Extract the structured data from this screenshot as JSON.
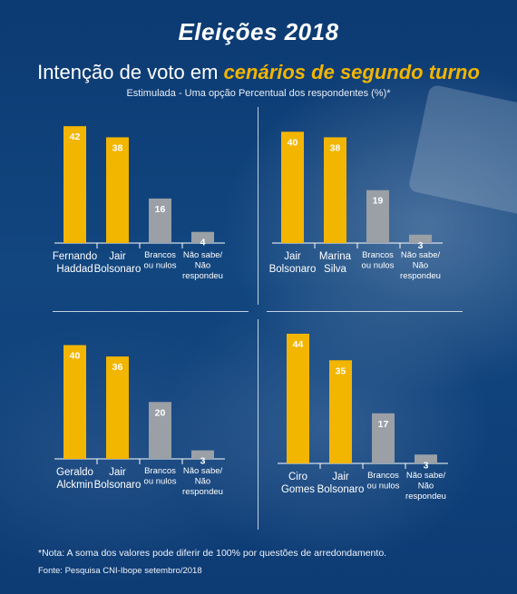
{
  "header": {
    "title": "Eleições 2018",
    "subtitle_prefix": "Intenção de voto em ",
    "subtitle_highlight": "cenários de segundo turno",
    "caption": "Estimulada - Uma opção Percentual dos respondentes (%)*"
  },
  "colors": {
    "candidate": "#f2b500",
    "other": "#9aa0a6",
    "axis": "#ffffff",
    "label": "#ffffff"
  },
  "chart_data": [
    {
      "type": "bar",
      "categories": [
        "Fernando Haddad",
        "Jair Bolsonaro",
        "Brancos ou nulos",
        "Não sabe/ Não respondeu"
      ],
      "category_lines": [
        [
          "Fernando",
          "Haddad"
        ],
        [
          "Jair",
          "Bolsonaro"
        ],
        [
          "Brancos",
          "ou nulos"
        ],
        [
          "Não sabe/",
          "Não",
          "respondeu"
        ]
      ],
      "values": [
        42,
        38,
        16,
        4
      ],
      "ylim": [
        0,
        44
      ]
    },
    {
      "type": "bar",
      "categories": [
        "Jair Bolsonaro",
        "Marina Silva",
        "Brancos ou nulos",
        "Não sabe/ Não respondeu"
      ],
      "category_lines": [
        [
          "Jair",
          "Bolsonaro"
        ],
        [
          "Marina",
          "Silva"
        ],
        [
          "Brancos",
          "ou nulos"
        ],
        [
          "Não sabe/",
          "Não",
          "respondeu"
        ]
      ],
      "values": [
        40,
        38,
        19,
        3
      ],
      "ylim": [
        0,
        44
      ]
    },
    {
      "type": "bar",
      "categories": [
        "Geraldo Alckmin",
        "Jair Bolsonaro",
        "Brancos ou nulos",
        "Não sabe/ Não respondeu"
      ],
      "category_lines": [
        [
          "Geraldo",
          "Alckmin"
        ],
        [
          "Jair",
          "Bolsonaro"
        ],
        [
          "Brancos",
          "ou nulos"
        ],
        [
          "Não sabe/",
          "Não",
          "respondeu"
        ]
      ],
      "values": [
        40,
        36,
        20,
        3
      ],
      "ylim": [
        0,
        44
      ]
    },
    {
      "type": "bar",
      "categories": [
        "Ciro Gomes",
        "Jair Bolsonaro",
        "Brancos ou nulos",
        "Não sabe/ Não respondeu"
      ],
      "category_lines": [
        [
          "Ciro",
          "Gomes"
        ],
        [
          "Jair",
          "Bolsonaro"
        ],
        [
          "Brancos",
          "ou nulos"
        ],
        [
          "Não sabe/",
          "Não",
          "respondeu"
        ]
      ],
      "values": [
        44,
        35,
        17,
        3
      ],
      "ylim": [
        0,
        44
      ]
    }
  ],
  "footer": {
    "note": "*Nota: A soma dos valores pode diferir de 100% por questões de arredondamento.",
    "source": "Fonte: Pesquisa CNI-Ibope setembro/2018"
  }
}
